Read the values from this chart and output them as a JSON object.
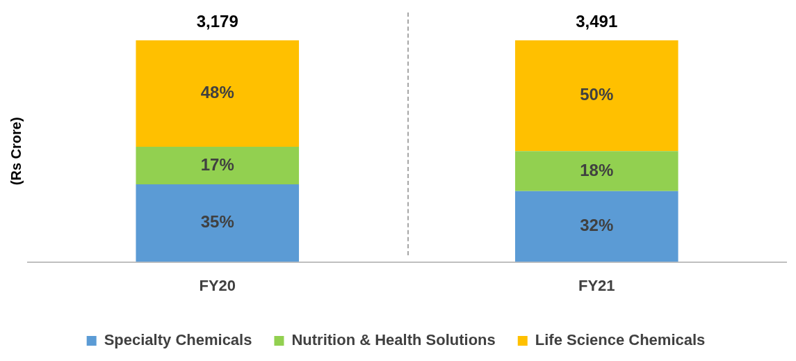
{
  "chart_data": {
    "type": "bar",
    "ylabel": "(Rs Crore)",
    "categories": [
      "FY20",
      "FY21"
    ],
    "stacked": true,
    "ylim": [
      0,
      100
    ],
    "grid": false,
    "tick_labels": "x",
    "legend": "bottom",
    "series": [
      {
        "name": "Specialty Chemicals",
        "color": "#5b9bd5",
        "values": [
          35,
          32
        ],
        "value_labels": [
          "35%",
          "32%"
        ]
      },
      {
        "name": "Nutrition & Health Solutions",
        "color": "#92d050",
        "values": [
          17,
          18
        ],
        "value_labels": [
          "17%",
          "18%"
        ]
      },
      {
        "name": "Life Science Chemicals",
        "color": "#ffc000",
        "values": [
          48,
          50
        ],
        "value_labels": [
          "48%",
          "50%"
        ]
      }
    ],
    "annotations": [
      {
        "text": "3,179",
        "x": "FY20",
        "y": 100
      },
      {
        "text": "3,491",
        "x": "FY21",
        "y": 100
      }
    ]
  }
}
